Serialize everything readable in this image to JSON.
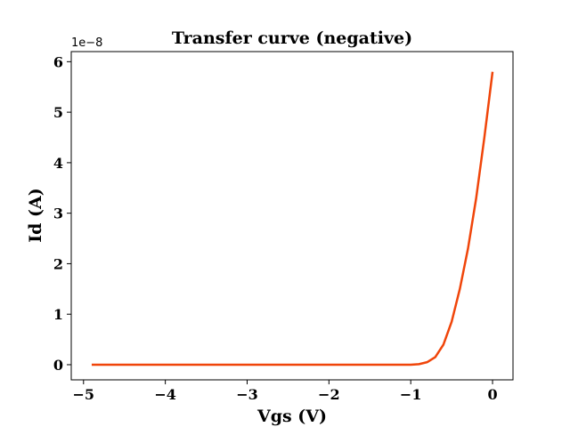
{
  "chart_data": {
    "type": "line",
    "title": "Transfer curve (negative)",
    "xlabel": "Vgs (V)",
    "ylabel": "Id (A)",
    "y_offset_label": "1e−8",
    "xlim": [
      -5.15,
      0.25
    ],
    "ylim": [
      -0.3,
      6.2
    ],
    "x_ticks": [
      -5,
      -4,
      -3,
      -2,
      -1,
      0
    ],
    "x_tick_labels": [
      "−5",
      "−4",
      "−3",
      "−2",
      "−1",
      "0"
    ],
    "y_ticks": [
      0,
      1,
      2,
      3,
      4,
      5,
      6
    ],
    "y_tick_labels": [
      "0",
      "1",
      "2",
      "3",
      "4",
      "5",
      "6"
    ],
    "grid": false,
    "series": [
      {
        "color": "#f0450a",
        "x": [
          -4.9,
          -4.5,
          -4.0,
          -3.5,
          -3.0,
          -2.5,
          -2.0,
          -1.5,
          -1.2,
          -1.0,
          -0.9,
          -0.8,
          -0.7,
          -0.6,
          -0.5,
          -0.4,
          -0.3,
          -0.2,
          -0.1,
          0.0
        ],
        "y": [
          0,
          0,
          0,
          0,
          0,
          0,
          0,
          0,
          0,
          0,
          0.01,
          0.05,
          0.15,
          0.4,
          0.85,
          1.5,
          2.3,
          3.3,
          4.5,
          5.8
        ]
      }
    ]
  }
}
